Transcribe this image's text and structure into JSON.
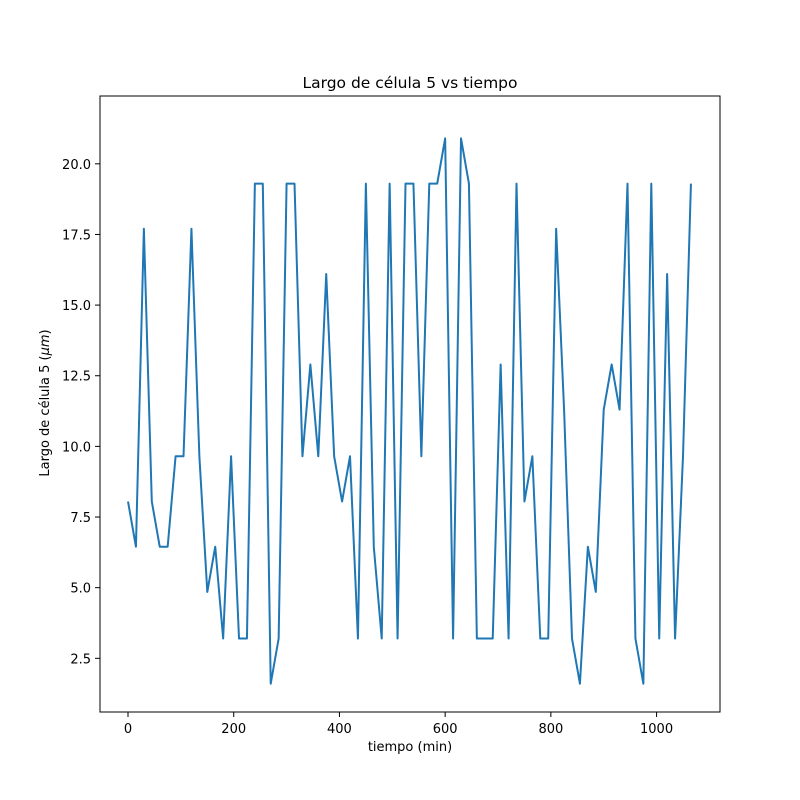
{
  "chart_data": {
    "type": "line",
    "title": "Largo de célula 5 vs tiempo",
    "xlabel": "tiempo (min)",
    "ylabel_text": "Largo de célula 5 (",
    "ylabel_unit": "μm",
    "ylabel_close": ")",
    "xlim": [
      -53,
      1120
    ],
    "ylim": [
      0.6,
      22.4
    ],
    "xticks": [
      0,
      200,
      400,
      600,
      800,
      1000
    ],
    "xtick_labels": [
      "0",
      "200",
      "400",
      "600",
      "800",
      "1000"
    ],
    "yticks": [
      2.5,
      5.0,
      7.5,
      10.0,
      12.5,
      15.0,
      17.5,
      20.0
    ],
    "ytick_labels": [
      "2.5",
      "5.0",
      "7.5",
      "10.0",
      "12.5",
      "15.0",
      "17.5",
      "20.0"
    ],
    "grid": false,
    "color": "#1f77b4",
    "series": [
      {
        "x": [
          0,
          15,
          30,
          45,
          60,
          75,
          90,
          105,
          120,
          135,
          150,
          165,
          180,
          195,
          210,
          225,
          240,
          255,
          270,
          285,
          300,
          315,
          330,
          345,
          360,
          375,
          390,
          405,
          420,
          435,
          450,
          465,
          480,
          495,
          510,
          525,
          540,
          555,
          570,
          585,
          600,
          615,
          630,
          645,
          660,
          675,
          690,
          705,
          720,
          735,
          750,
          765,
          780,
          795,
          810,
          825,
          840,
          855,
          870,
          885,
          900,
          915,
          930,
          945,
          960,
          975,
          990,
          1005,
          1020,
          1035,
          1050,
          1065
        ],
        "y": [
          8.05,
          6.45,
          17.7,
          8.05,
          6.45,
          6.45,
          9.65,
          9.65,
          17.7,
          9.65,
          4.85,
          6.45,
          3.2,
          9.65,
          3.2,
          3.2,
          19.3,
          19.3,
          1.6,
          3.2,
          19.3,
          19.3,
          9.65,
          12.9,
          9.65,
          16.1,
          9.65,
          8.05,
          9.65,
          3.2,
          19.3,
          6.45,
          3.2,
          19.3,
          3.2,
          19.3,
          19.3,
          9.65,
          19.3,
          19.3,
          20.9,
          3.2,
          20.9,
          19.3,
          3.2,
          3.2,
          3.2,
          12.9,
          3.2,
          19.3,
          8.05,
          9.65,
          3.2,
          3.2,
          17.7,
          11.3,
          3.2,
          1.6,
          6.45,
          4.85,
          11.3,
          12.9,
          11.3,
          19.3,
          3.2,
          1.6,
          19.3,
          3.2,
          16.1,
          3.2,
          9.65,
          19.3
        ]
      }
    ]
  }
}
